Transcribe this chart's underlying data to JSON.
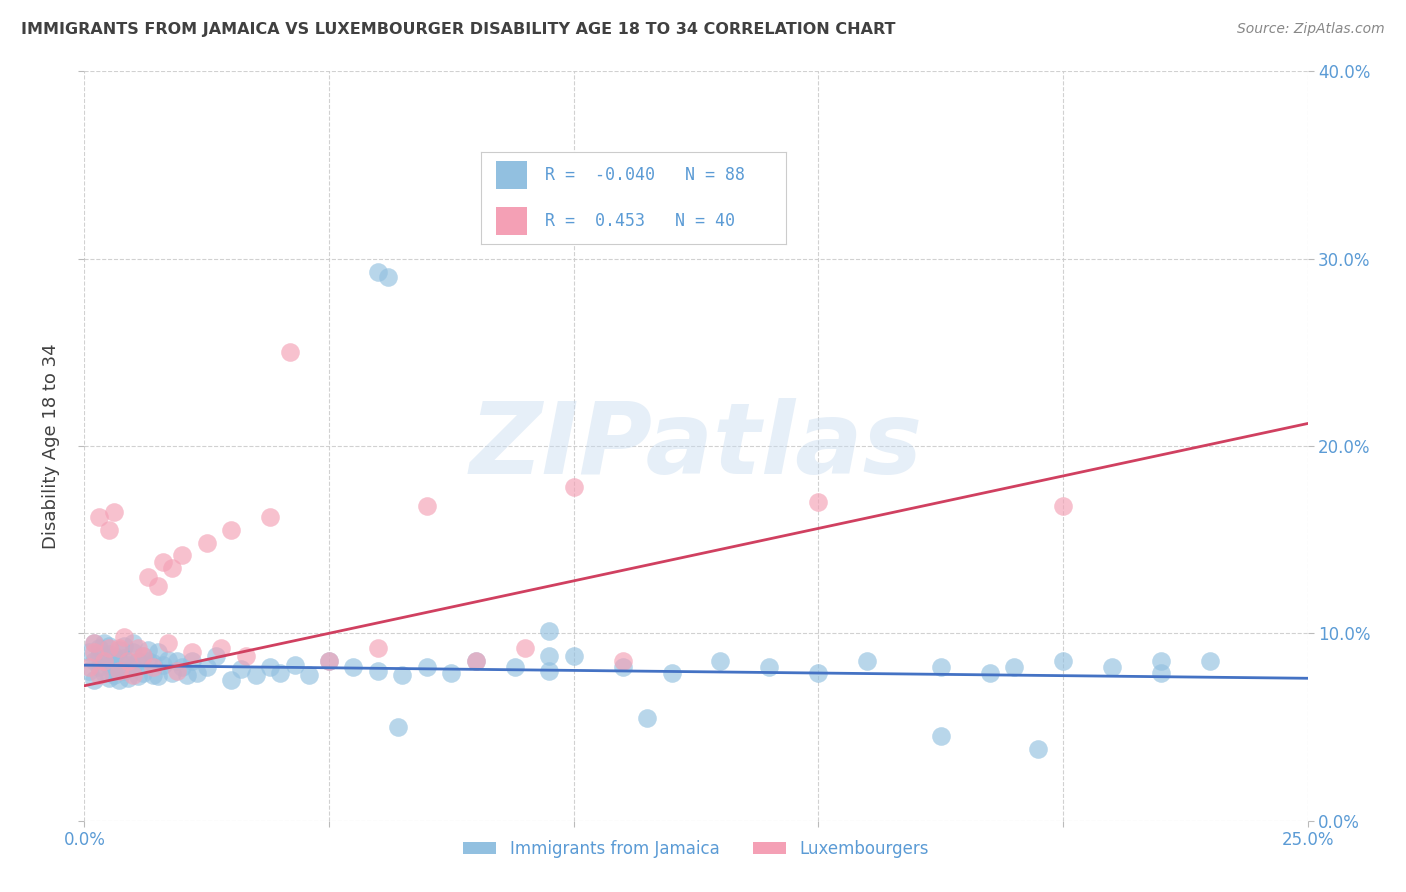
{
  "title": "IMMIGRANTS FROM JAMAICA VS LUXEMBOURGER DISABILITY AGE 18 TO 34 CORRELATION CHART",
  "source": "Source: ZipAtlas.com",
  "ylabel": "Disability Age 18 to 34",
  "xlim": [
    0.0,
    0.25
  ],
  "ylim": [
    0.0,
    0.4
  ],
  "xtick_vals": [
    0.0,
    0.05,
    0.1,
    0.15,
    0.2,
    0.25
  ],
  "xtick_labels": [
    "0.0%",
    "",
    "",
    "",
    "",
    "25.0%"
  ],
  "ytick_vals": [
    0.0,
    0.1,
    0.2,
    0.3,
    0.4
  ],
  "ytick_labels": [
    "0.0%",
    "10.0%",
    "20.0%",
    "30.0%",
    "40.0%"
  ],
  "legend_labels": [
    "Immigrants from Jamaica",
    "Luxembourgers"
  ],
  "series1_R": -0.04,
  "series1_N": 88,
  "series2_R": 0.453,
  "series2_N": 40,
  "color_blue": "#92C0E0",
  "color_pink": "#F4A0B5",
  "line_color_blue": "#4472C4",
  "line_color_pink": "#D04060",
  "watermark": "ZIPatlas",
  "background_color": "#FFFFFF",
  "grid_color": "#CCCCCC",
  "title_color": "#404040",
  "axis_color": "#5B9BD5",
  "jamaica_x": [
    0.001,
    0.001,
    0.002,
    0.002,
    0.002,
    0.003,
    0.003,
    0.003,
    0.004,
    0.004,
    0.004,
    0.005,
    0.005,
    0.005,
    0.005,
    0.006,
    0.006,
    0.006,
    0.007,
    0.007,
    0.007,
    0.008,
    0.008,
    0.008,
    0.009,
    0.009,
    0.01,
    0.01,
    0.01,
    0.011,
    0.011,
    0.012,
    0.012,
    0.013,
    0.013,
    0.014,
    0.014,
    0.015,
    0.015,
    0.016,
    0.017,
    0.018,
    0.019,
    0.02,
    0.021,
    0.022,
    0.023,
    0.025,
    0.027,
    0.03,
    0.032,
    0.035,
    0.038,
    0.04,
    0.043,
    0.046,
    0.05,
    0.055,
    0.06,
    0.065,
    0.07,
    0.075,
    0.08,
    0.088,
    0.095,
    0.1,
    0.11,
    0.12,
    0.13,
    0.14,
    0.15,
    0.16,
    0.175,
    0.185,
    0.2,
    0.21,
    0.22,
    0.23,
    0.06,
    0.062,
    0.064,
    0.095,
    0.095,
    0.115,
    0.175,
    0.19,
    0.195,
    0.22
  ],
  "jamaica_y": [
    0.09,
    0.08,
    0.095,
    0.085,
    0.075,
    0.088,
    0.082,
    0.092,
    0.079,
    0.086,
    0.095,
    0.083,
    0.089,
    0.076,
    0.093,
    0.082,
    0.088,
    0.078,
    0.091,
    0.085,
    0.075,
    0.087,
    0.08,
    0.093,
    0.083,
    0.076,
    0.09,
    0.082,
    0.095,
    0.085,
    0.077,
    0.088,
    0.079,
    0.085,
    0.091,
    0.078,
    0.084,
    0.09,
    0.077,
    0.083,
    0.086,
    0.079,
    0.085,
    0.082,
    0.078,
    0.085,
    0.079,
    0.082,
    0.088,
    0.075,
    0.081,
    0.078,
    0.082,
    0.079,
    0.083,
    0.078,
    0.085,
    0.082,
    0.08,
    0.078,
    0.082,
    0.079,
    0.085,
    0.082,
    0.08,
    0.088,
    0.082,
    0.079,
    0.085,
    0.082,
    0.079,
    0.085,
    0.082,
    0.079,
    0.085,
    0.082,
    0.079,
    0.085,
    0.293,
    0.29,
    0.05,
    0.101,
    0.088,
    0.055,
    0.045,
    0.082,
    0.038,
    0.085
  ],
  "luxembourg_x": [
    0.001,
    0.002,
    0.002,
    0.003,
    0.003,
    0.004,
    0.005,
    0.005,
    0.006,
    0.007,
    0.007,
    0.008,
    0.009,
    0.01,
    0.011,
    0.012,
    0.013,
    0.014,
    0.015,
    0.016,
    0.017,
    0.018,
    0.019,
    0.02,
    0.022,
    0.025,
    0.028,
    0.03,
    0.033,
    0.038,
    0.042,
    0.05,
    0.06,
    0.07,
    0.08,
    0.09,
    0.1,
    0.11,
    0.15,
    0.2
  ],
  "luxembourg_y": [
    0.082,
    0.09,
    0.095,
    0.078,
    0.162,
    0.085,
    0.092,
    0.155,
    0.165,
    0.08,
    0.092,
    0.098,
    0.085,
    0.078,
    0.092,
    0.088,
    0.13,
    0.082,
    0.125,
    0.138,
    0.095,
    0.135,
    0.08,
    0.142,
    0.09,
    0.148,
    0.092,
    0.155,
    0.088,
    0.162,
    0.25,
    0.085,
    0.092,
    0.168,
    0.085,
    0.092,
    0.178,
    0.085,
    0.17,
    0.168
  ],
  "blue_trend_x0": 0.0,
  "blue_trend_x1": 0.25,
  "blue_trend_y0": 0.083,
  "blue_trend_y1": 0.076,
  "pink_trend_x0": 0.0,
  "pink_trend_x1": 0.25,
  "pink_trend_y0": 0.072,
  "pink_trend_y1": 0.212
}
